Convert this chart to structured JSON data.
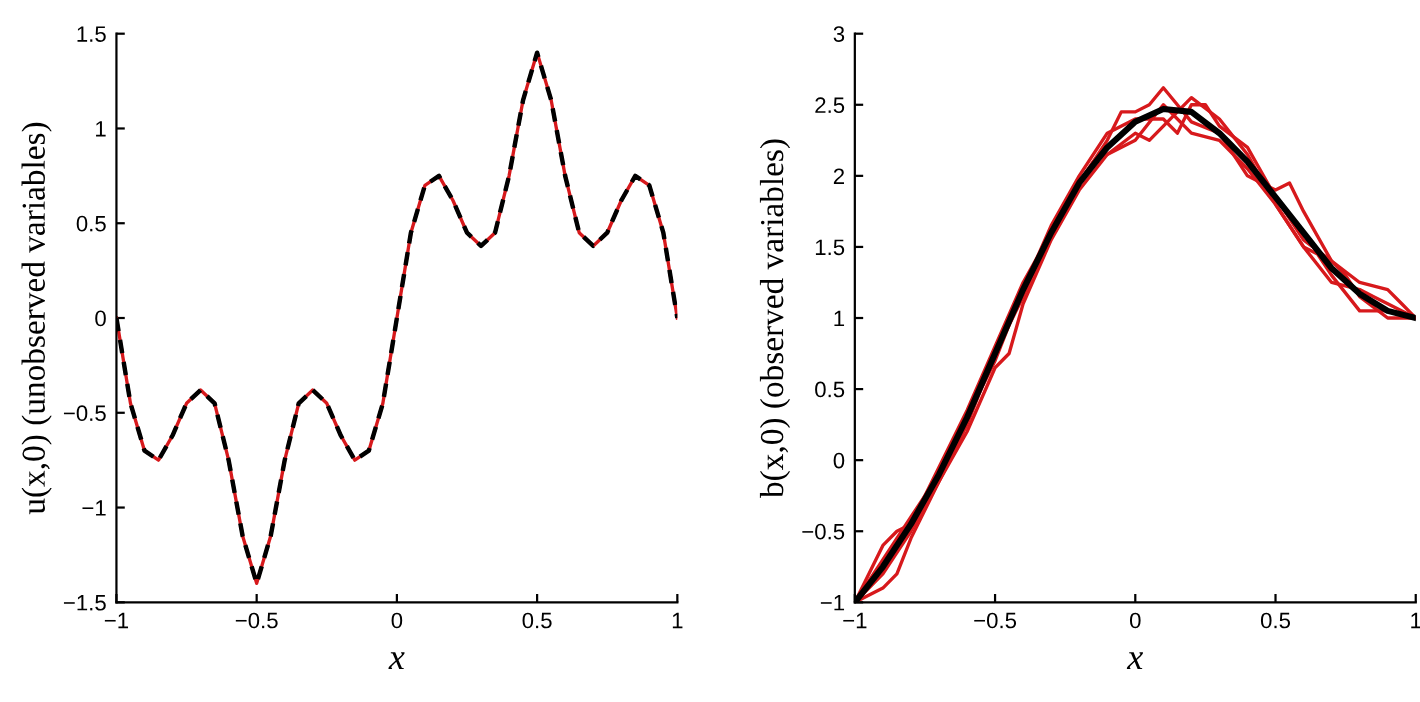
{
  "chart_data": [
    {
      "type": "line",
      "xlabel": "x",
      "ylabel": "u(x,0) (unobserved variables)",
      "xlim": [
        -1,
        1
      ],
      "ylim": [
        -1.5,
        1.5
      ],
      "xticks": [
        -1,
        -0.5,
        0,
        0.5,
        1
      ],
      "yticks": [
        -1.5,
        -1,
        -0.5,
        0,
        0.5,
        1,
        1.5
      ],
      "grid": false,
      "legend": false,
      "x": [
        -1,
        -0.95,
        -0.9,
        -0.85,
        -0.8,
        -0.75,
        -0.7,
        -0.65,
        -0.6,
        -0.55,
        -0.5,
        -0.45,
        -0.4,
        -0.35,
        -0.3,
        -0.25,
        -0.2,
        -0.15,
        -0.1,
        -0.05,
        0,
        0.05,
        0.1,
        0.15,
        0.2,
        0.25,
        0.3,
        0.35,
        0.4,
        0.45,
        0.5,
        0.55,
        0.6,
        0.65,
        0.7,
        0.75,
        0.8,
        0.85,
        0.9,
        0.95,
        1
      ],
      "series": [
        {
          "color": "#d7191c",
          "line_style": "solid",
          "values": [
            0,
            -0.45,
            -0.7,
            -0.75,
            -0.62,
            -0.45,
            -0.38,
            -0.45,
            -0.75,
            -1.15,
            -1.4,
            -1.15,
            -0.75,
            -0.45,
            -0.38,
            -0.45,
            -0.62,
            -0.75,
            -0.7,
            -0.45,
            0,
            0.45,
            0.7,
            0.75,
            0.62,
            0.45,
            0.38,
            0.45,
            0.75,
            1.15,
            1.4,
            1.15,
            0.75,
            0.45,
            0.38,
            0.45,
            0.62,
            0.75,
            0.7,
            0.45,
            0
          ]
        },
        {
          "color": "#000000",
          "line_style": "dashed",
          "values": [
            0,
            -0.45,
            -0.7,
            -0.75,
            -0.62,
            -0.45,
            -0.38,
            -0.45,
            -0.75,
            -1.15,
            -1.4,
            -1.15,
            -0.75,
            -0.45,
            -0.38,
            -0.45,
            -0.62,
            -0.75,
            -0.7,
            -0.45,
            0,
            0.45,
            0.7,
            0.75,
            0.62,
            0.45,
            0.38,
            0.45,
            0.75,
            1.15,
            1.4,
            1.15,
            0.75,
            0.45,
            0.38,
            0.45,
            0.62,
            0.75,
            0.7,
            0.45,
            0
          ]
        }
      ]
    },
    {
      "type": "line",
      "xlabel": "x",
      "ylabel": "b(x,0) (observed variables)",
      "xlim": [
        -1,
        1
      ],
      "ylim": [
        -1,
        3
      ],
      "xticks": [
        -1,
        -0.5,
        0,
        0.5,
        1
      ],
      "yticks": [
        -1,
        -0.5,
        0,
        0.5,
        1,
        1.5,
        2,
        2.5,
        3
      ],
      "grid": false,
      "legend": false,
      "series": [
        {
          "color": "#d7191c",
          "line_style": "solid",
          "x": [
            -1,
            -0.9,
            -0.85,
            -0.8,
            -0.7,
            -0.6,
            -0.5,
            -0.4,
            -0.3,
            -0.2,
            -0.1,
            -0.05,
            0,
            0.05,
            0.1,
            0.15,
            0.2,
            0.3,
            0.4,
            0.5,
            0.55,
            0.6,
            0.7,
            0.8,
            0.9,
            0.95,
            1
          ],
          "values": [
            -1,
            -0.6,
            -0.5,
            -0.45,
            -0.05,
            0.35,
            0.8,
            1.25,
            1.6,
            1.95,
            2.25,
            2.45,
            2.45,
            2.5,
            2.62,
            2.5,
            2.38,
            2.3,
            2.0,
            1.9,
            1.95,
            1.75,
            1.4,
            1.25,
            1.2,
            1.1,
            1.0
          ]
        },
        {
          "color": "#d7191c",
          "line_style": "solid",
          "x": [
            -1,
            -0.9,
            -0.85,
            -0.8,
            -0.7,
            -0.6,
            -0.5,
            -0.45,
            -0.4,
            -0.3,
            -0.2,
            -0.1,
            0,
            0.05,
            0.1,
            0.2,
            0.3,
            0.4,
            0.5,
            0.6,
            0.65,
            0.7,
            0.8,
            0.9,
            1
          ],
          "values": [
            -1,
            -0.9,
            -0.8,
            -0.55,
            -0.15,
            0.2,
            0.65,
            0.75,
            1.1,
            1.55,
            1.9,
            2.15,
            2.3,
            2.25,
            2.35,
            2.55,
            2.4,
            2.15,
            1.8,
            1.5,
            1.45,
            1.3,
            1.05,
            1.05,
            1.0
          ]
        },
        {
          "color": "#d7191c",
          "line_style": "solid",
          "x": [
            -1,
            -0.9,
            -0.8,
            -0.7,
            -0.6,
            -0.5,
            -0.4,
            -0.3,
            -0.2,
            -0.1,
            0,
            0.1,
            0.15,
            0.2,
            0.25,
            0.3,
            0.4,
            0.5,
            0.6,
            0.7,
            0.75,
            0.8,
            0.9,
            1
          ],
          "values": [
            -1,
            -0.7,
            -0.4,
            -0.1,
            0.3,
            0.7,
            1.2,
            1.65,
            2.0,
            2.3,
            2.4,
            2.4,
            2.3,
            2.5,
            2.5,
            2.35,
            2.2,
            1.85,
            1.55,
            1.4,
            1.3,
            1.15,
            1.0,
            1.0
          ]
        },
        {
          "color": "#d7191c",
          "line_style": "solid",
          "x": [
            -1,
            -0.9,
            -0.8,
            -0.7,
            -0.6,
            -0.5,
            -0.4,
            -0.3,
            -0.2,
            -0.15,
            -0.1,
            0,
            0.1,
            0.2,
            0.3,
            0.4,
            0.5,
            0.6,
            0.7,
            0.8,
            0.85,
            0.9,
            1
          ],
          "values": [
            -1,
            -0.8,
            -0.5,
            -0.15,
            0.25,
            0.75,
            1.15,
            1.6,
            1.95,
            2.1,
            2.15,
            2.25,
            2.5,
            2.3,
            2.25,
            2.05,
            1.8,
            1.5,
            1.25,
            1.2,
            1.15,
            1.1,
            1.0
          ]
        },
        {
          "color": "#000000",
          "line_style": "solid",
          "x": [
            -1,
            -0.9,
            -0.8,
            -0.7,
            -0.6,
            -0.5,
            -0.4,
            -0.3,
            -0.2,
            -0.1,
            0,
            0.1,
            0.2,
            0.3,
            0.4,
            0.5,
            0.6,
            0.7,
            0.8,
            0.9,
            1
          ],
          "values": [
            -1,
            -0.75,
            -0.45,
            -0.1,
            0.3,
            0.75,
            1.2,
            1.6,
            1.95,
            2.2,
            2.38,
            2.47,
            2.45,
            2.3,
            2.1,
            1.85,
            1.6,
            1.35,
            1.17,
            1.05,
            1.0
          ]
        }
      ]
    }
  ]
}
